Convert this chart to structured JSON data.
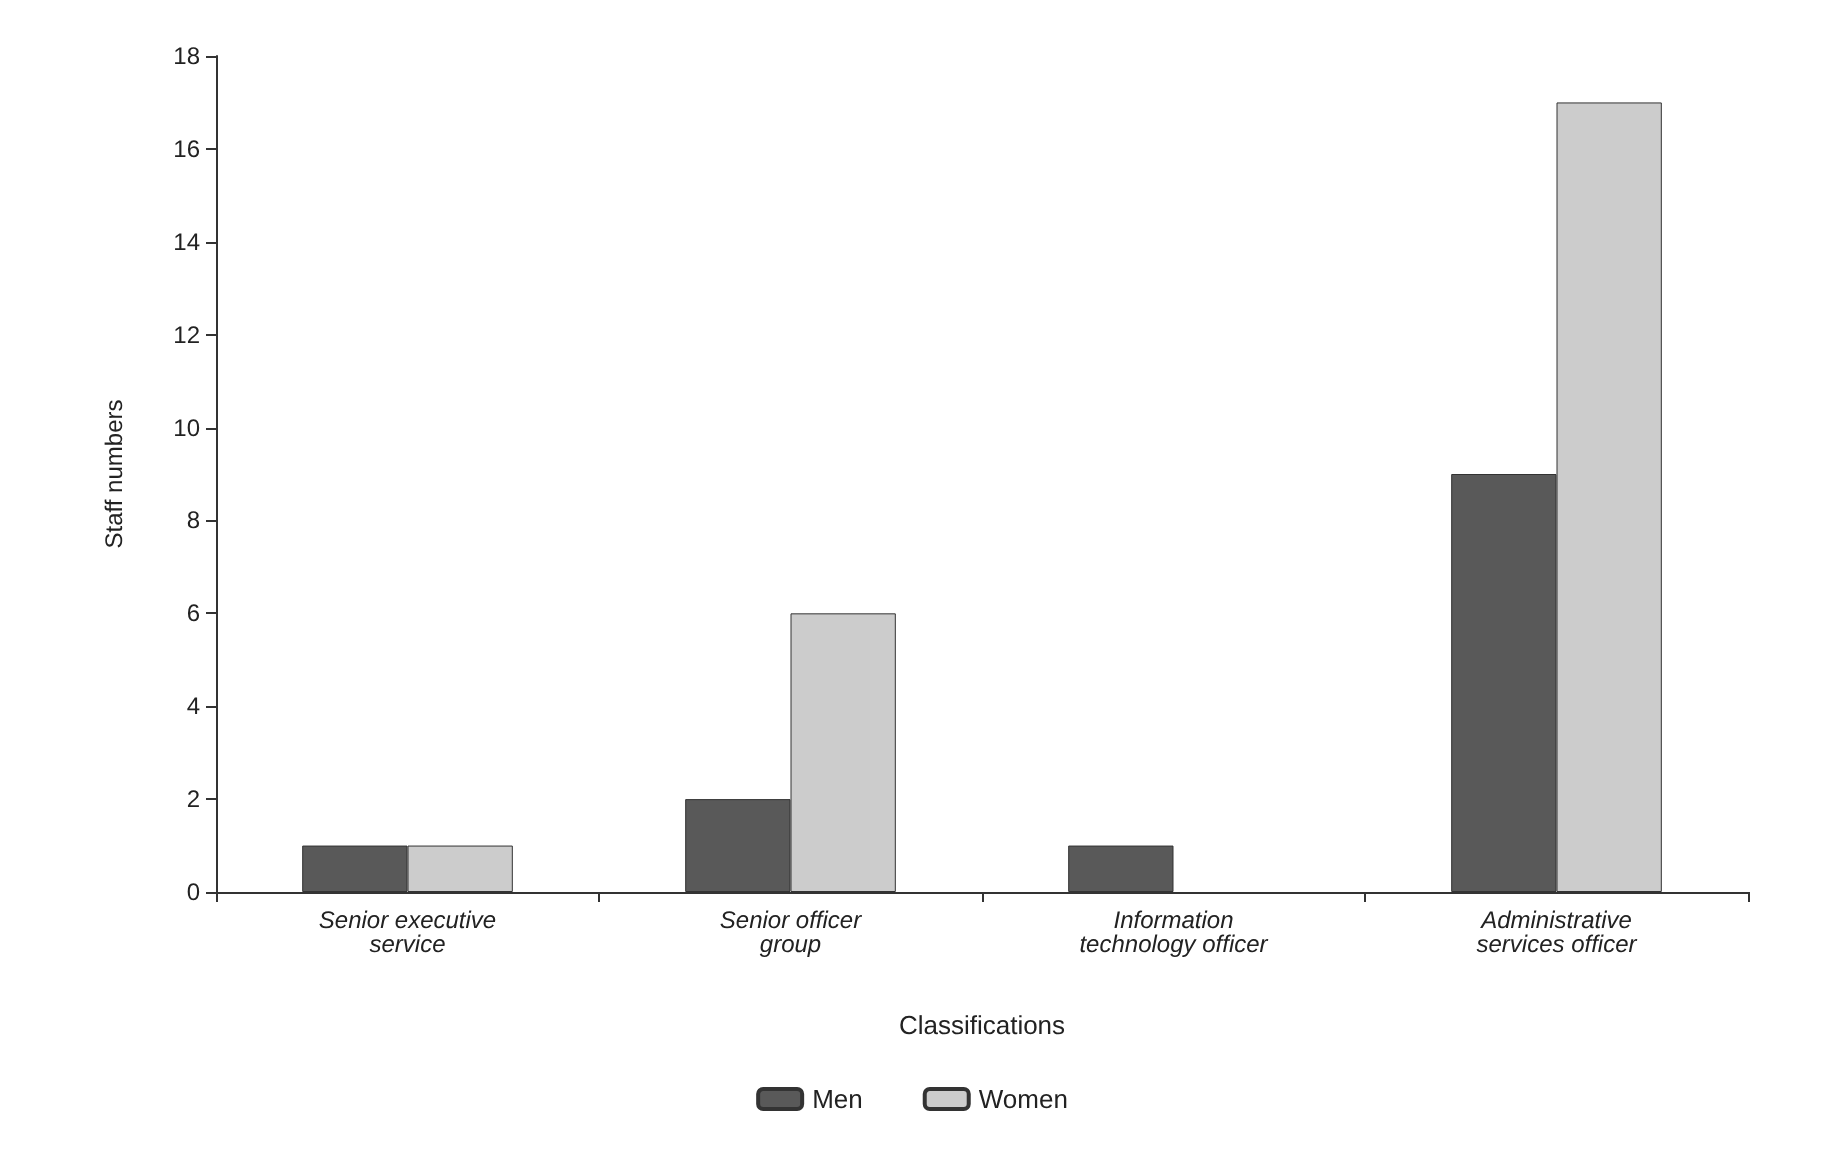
{
  "chart_data": {
    "type": "bar",
    "xlabel": "Classifications",
    "ylabel": "Staff numbers",
    "categories": [
      "Senior executive\nservice",
      "Senior officer\ngroup",
      "Information\ntechnology officer",
      "Administrative\nservices officer"
    ],
    "series": [
      {
        "name": "Men",
        "color": "#595959",
        "values": [
          1,
          2,
          1,
          9
        ]
      },
      {
        "name": "Women",
        "color": "#cccccc",
        "values": [
          1,
          6,
          null,
          17
        ]
      }
    ],
    "ylim": [
      0,
      18
    ],
    "yticks": [
      0,
      2,
      4,
      6,
      8,
      10,
      12,
      14,
      16,
      18
    ],
    "grid": false,
    "legend": "bottom"
  }
}
